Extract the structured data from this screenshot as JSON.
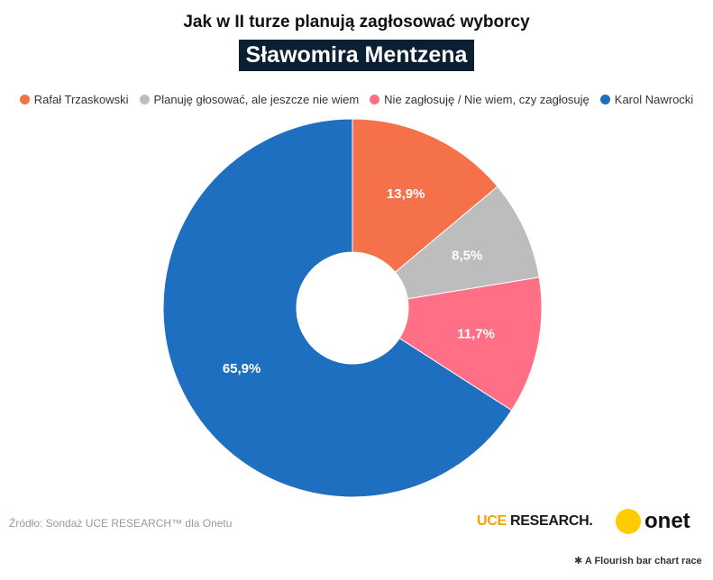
{
  "title": "Jak w II turze planują zagłosować wyborcy",
  "subtitle": "Sławomira Mentzena",
  "chart_data": {
    "type": "pie",
    "donut": true,
    "categories": [
      "Rafał Trzaskowski",
      "Planuję głosować, ale jeszcze nie wiem",
      "Nie zagłosuję / Nie wiem, czy zagłosuję",
      "Karol Nawrocki"
    ],
    "values": [
      13.9,
      8.5,
      11.7,
      65.9
    ],
    "value_labels": [
      "13,9%",
      "8,5%",
      "11,7%",
      "65,9%"
    ],
    "colors": [
      "#f57149",
      "#bdbdbd",
      "#ff6f86",
      "#1e6fbf"
    ],
    "legend_position": "top"
  },
  "source": "Źródło: Sondaż UCE RESEARCH™ dla Onetu",
  "logos": {
    "uce_part1": "UCE ",
    "uce_part2": "RESEARCH.",
    "onet": "onet"
  },
  "credit": "A Flourish bar chart race",
  "credit_icon": "asterisk-icon"
}
